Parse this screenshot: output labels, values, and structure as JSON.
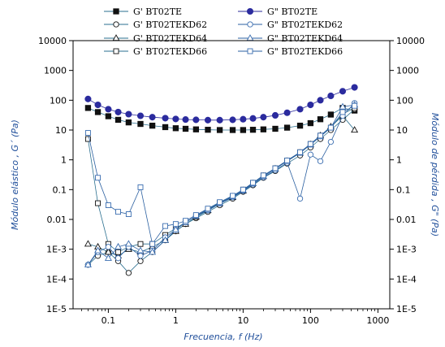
{
  "chart_data": {
    "type": "scatter",
    "x_scale": "log",
    "y_scale": "log",
    "xlim": [
      0.03,
      1500
    ],
    "ylim": [
      1e-05,
      10000
    ],
    "xlabel": "Frecuencia, f (Hz)",
    "ylabel_left": "Módulo elástico , G´ (Pa)",
    "ylabel_right": "Módulo de pérdida , G\" (Pa)",
    "x_ticks": [
      {
        "value": 0.1,
        "label": "0.1"
      },
      {
        "value": 1,
        "label": "1"
      },
      {
        "value": 10,
        "label": "10"
      },
      {
        "value": 100,
        "label": "100"
      },
      {
        "value": 1000,
        "label": "1000"
      }
    ],
    "y_ticks": [
      {
        "value": 10000,
        "label": "10000"
      },
      {
        "value": 1000,
        "label": "1000"
      },
      {
        "value": 100,
        "label": "100"
      },
      {
        "value": 10,
        "label": "10"
      },
      {
        "value": 1,
        "label": "1"
      },
      {
        "value": 0.1,
        "label": "0.1"
      },
      {
        "value": 0.01,
        "label": "0.01"
      },
      {
        "value": 0.001,
        "label": "1E-3"
      },
      {
        "value": 0.0001,
        "label": "1E-4"
      },
      {
        "value": 1e-05,
        "label": "1E-5"
      }
    ],
    "grid": false,
    "legend_position": "top",
    "legend_columns": 2,
    "series": [
      {
        "name": "G' BT02TE",
        "marker": "square-filled",
        "x": [
          0.05,
          0.07,
          0.1,
          0.14,
          0.2,
          0.3,
          0.45,
          0.7,
          1,
          1.4,
          2,
          3,
          4.5,
          7,
          10,
          14,
          20,
          30,
          45,
          70,
          100,
          140,
          200,
          300,
          450
        ],
        "y": [
          55,
          40,
          29,
          22,
          18,
          16,
          14,
          12.5,
          11.5,
          11,
          10.5,
          10.2,
          10,
          10,
          10,
          10.2,
          10.5,
          11,
          12,
          14,
          17,
          23,
          33,
          55,
          45
        ]
      },
      {
        "name": "G' BT02TEKD62",
        "marker": "circle-open",
        "x": [
          0.05,
          0.07,
          0.1,
          0.14,
          0.2,
          0.3,
          0.45,
          0.7,
          1,
          1.4,
          2,
          3,
          4.5,
          7,
          10,
          14,
          20,
          30,
          45,
          70,
          100,
          140,
          200,
          300,
          450
        ],
        "y": [
          0.0003,
          0.0006,
          0.0008,
          0.0004,
          0.00016,
          0.0004,
          0.0008,
          0.002,
          0.004,
          0.007,
          0.011,
          0.018,
          0.03,
          0.05,
          0.085,
          0.14,
          0.25,
          0.42,
          0.75,
          1.4,
          2.6,
          5,
          10,
          22,
          50
        ]
      },
      {
        "name": "G' BT02TEKD64",
        "marker": "triangle-open",
        "x": [
          0.05,
          0.07,
          0.1,
          0.14,
          0.2,
          0.3,
          0.45,
          0.7,
          1,
          1.4,
          2,
          3,
          4.5,
          7,
          10,
          14,
          20,
          30,
          45,
          70,
          100,
          140,
          200,
          300,
          450
        ],
        "y": [
          0.0015,
          0.0012,
          0.0008,
          0.0006,
          0.001,
          0.0008,
          0.0012,
          0.002,
          0.004,
          0.007,
          0.012,
          0.02,
          0.034,
          0.055,
          0.09,
          0.16,
          0.28,
          0.5,
          0.9,
          1.7,
          3.3,
          6.5,
          13,
          30,
          10
        ]
      },
      {
        "name": "G' BT02TEKD66",
        "marker": "square-open",
        "x": [
          0.05,
          0.07,
          0.1,
          0.14,
          0.2,
          0.3,
          0.45,
          0.7,
          1,
          1.4,
          2,
          3,
          4.5,
          7,
          10,
          14,
          20,
          30,
          45,
          70,
          100,
          140,
          200,
          300,
          450
        ],
        "y": [
          5,
          0.035,
          0.0015,
          0.0008,
          0.0012,
          0.0015,
          0.0015,
          0.003,
          0.005,
          0.008,
          0.013,
          0.022,
          0.036,
          0.06,
          0.1,
          0.17,
          0.3,
          0.52,
          0.95,
          1.8,
          3.4,
          6.5,
          12,
          35,
          55
        ]
      },
      {
        "name": "G\" BT02TE",
        "marker": "circle-filled",
        "x": [
          0.05,
          0.07,
          0.1,
          0.14,
          0.2,
          0.3,
          0.45,
          0.7,
          1,
          1.4,
          2,
          3,
          4.5,
          7,
          10,
          14,
          20,
          30,
          45,
          70,
          100,
          140,
          200,
          300,
          450
        ],
        "y": [
          110,
          70,
          50,
          40,
          34,
          30,
          27,
          25,
          23.5,
          22.5,
          22,
          21.5,
          21.5,
          22,
          23,
          24.5,
          27,
          31,
          38,
          50,
          70,
          100,
          140,
          200,
          270
        ]
      },
      {
        "name": "G\" BT02TEKD62",
        "marker": "circle-open",
        "x": [
          0.05,
          0.07,
          0.1,
          0.14,
          0.2,
          0.3,
          0.45,
          0.7,
          1,
          1.4,
          2,
          3,
          4.5,
          7,
          10,
          14,
          20,
          30,
          45,
          70,
          100,
          140,
          200,
          300,
          450
        ],
        "y": [
          0.0003,
          0.0008,
          0.0012,
          0.0005,
          0.0012,
          0.0006,
          0.0009,
          0.0025,
          0.0045,
          0.008,
          0.013,
          0.02,
          0.034,
          0.055,
          0.09,
          0.15,
          0.26,
          0.45,
          0.8,
          0.05,
          1.5,
          0.9,
          4,
          30,
          80
        ]
      },
      {
        "name": "G\" BT02TEKD64",
        "marker": "triangle-open",
        "x": [
          0.05,
          0.07,
          0.1,
          0.14,
          0.2,
          0.3,
          0.45,
          0.7,
          1,
          1.4,
          2,
          3,
          4.5,
          7,
          10,
          14,
          20,
          30,
          45,
          70,
          100,
          140,
          200,
          300,
          450
        ],
        "y": [
          0.0003,
          0.0009,
          0.0005,
          0.0012,
          0.0015,
          0.0009,
          0.0008,
          0.002,
          0.0045,
          0.008,
          0.013,
          0.021,
          0.035,
          0.058,
          0.095,
          0.16,
          0.28,
          0.5,
          0.9,
          1.7,
          3.2,
          6,
          12,
          60,
          70
        ]
      },
      {
        "name": "G\" BT02TEKD66",
        "marker": "square-open",
        "x": [
          0.05,
          0.07,
          0.1,
          0.14,
          0.2,
          0.3,
          0.45,
          0.7,
          1,
          1.4,
          2,
          3,
          4.5,
          7,
          10,
          14,
          20,
          30,
          45,
          70,
          100,
          140,
          200,
          300,
          450
        ],
        "y": [
          8,
          0.25,
          0.03,
          0.018,
          0.015,
          0.12,
          0.0015,
          0.006,
          0.007,
          0.009,
          0.014,
          0.023,
          0.038,
          0.062,
          0.1,
          0.17,
          0.3,
          0.52,
          0.95,
          1.8,
          3.4,
          6.5,
          12,
          40,
          65
        ]
      }
    ]
  }
}
